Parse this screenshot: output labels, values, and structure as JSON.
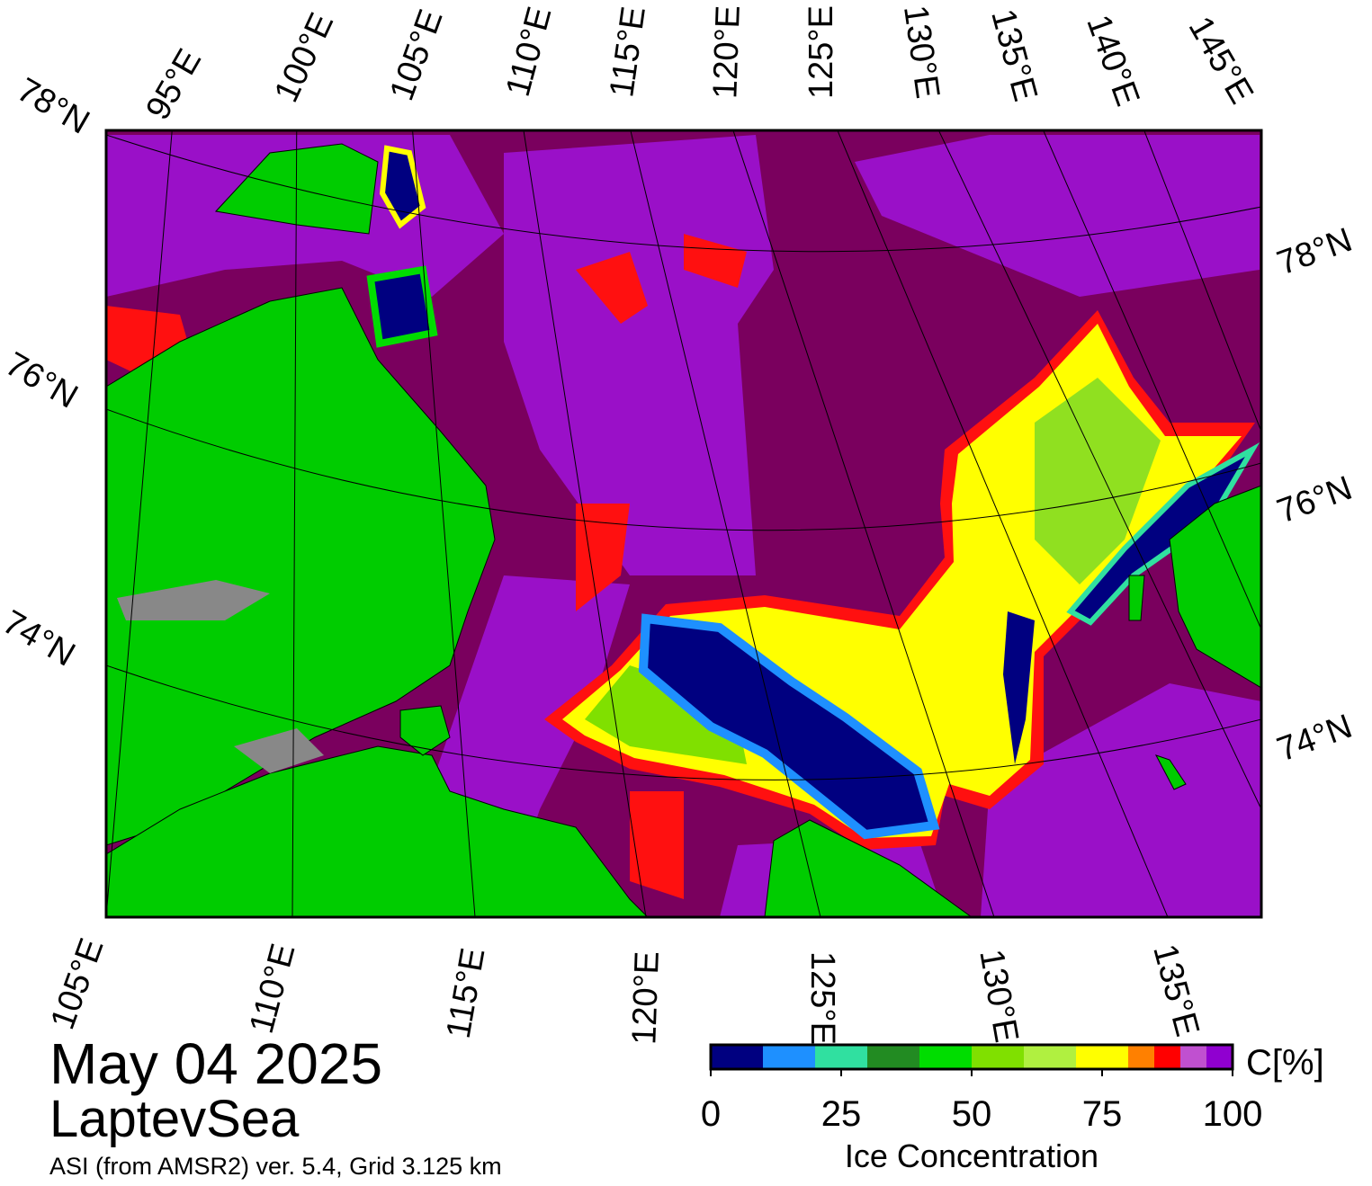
{
  "header": {
    "date": "May 04 2025",
    "region": "LaptevSea",
    "source": "ASI (from AMSR2) ver. 5.4,  Grid 3.125 km"
  },
  "map": {
    "top_labels": [
      "95°E",
      "100°E",
      "105°E",
      "110°E",
      "115°E",
      "120°E",
      "125°E",
      "130°E",
      "135°E",
      "140°E",
      "145°E"
    ],
    "left_labels": [
      "78°N",
      "76°N",
      "74°N"
    ],
    "right_labels": [
      "78°N",
      "76°N",
      "74°N"
    ],
    "bottom_labels": [
      "105°E",
      "110°E",
      "115°E",
      "120°E",
      "125°E",
      "130°E",
      "135°E"
    ]
  },
  "colorbar": {
    "bounds": [
      0,
      10,
      20,
      30,
      40,
      50,
      60,
      70,
      80,
      85,
      90,
      95,
      100
    ],
    "colors": [
      "#000080",
      "#1e90ff",
      "#30e0a0",
      "#228b22",
      "#00dd00",
      "#80e000",
      "#b0f040",
      "#ffff00",
      "#ff8000",
      "#ff0000",
      "#c050d0",
      "#9000d0"
    ],
    "ticks": [
      0,
      25,
      50,
      75,
      100
    ],
    "unit": "C[%]",
    "label": "Ice Concentration"
  }
}
